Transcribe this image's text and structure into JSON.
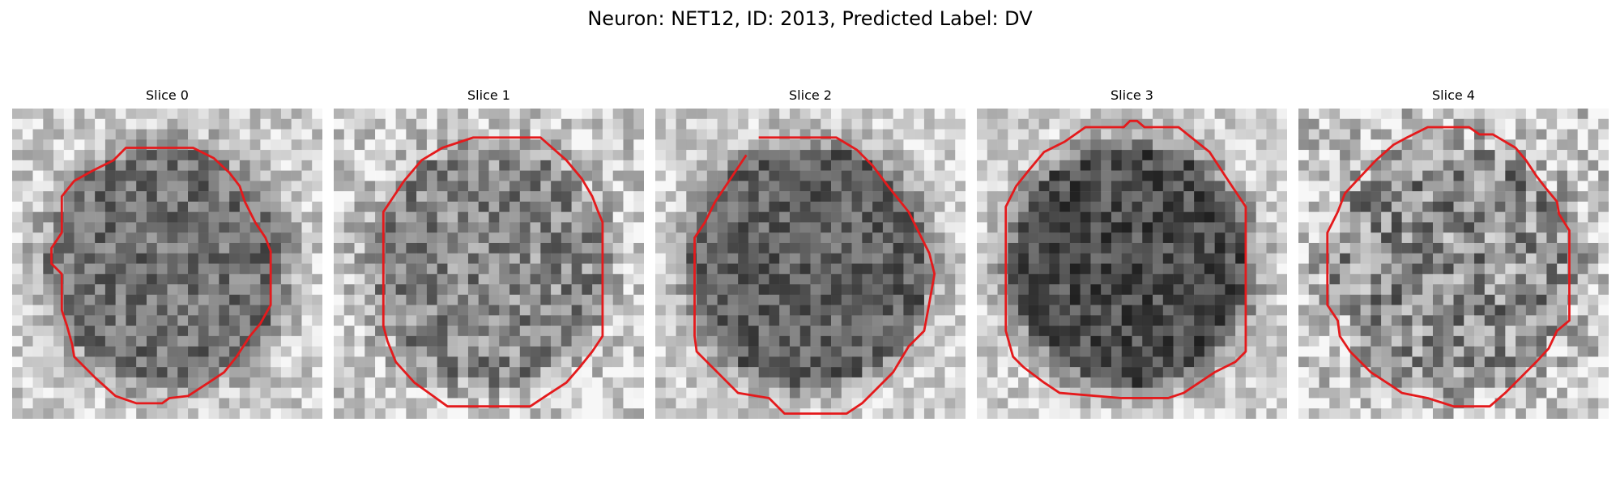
{
  "figure": {
    "title": "Neuron: NET12, ID: 2013, Predicted Label: DV"
  },
  "contour_color": "#e41a1c",
  "panels": [
    {
      "title": "Slice 0",
      "brightness": 0.44,
      "blob": "dark",
      "noise": 0.2,
      "seed": 11
    },
    {
      "title": "Slice 1",
      "brightness": 0.53,
      "blob": "medium",
      "noise": 0.24,
      "seed": 23
    },
    {
      "title": "Slice 2",
      "brightness": 0.38,
      "blob": "dark",
      "noise": 0.18,
      "seed": 37
    },
    {
      "title": "Slice 3",
      "brightness": 0.3,
      "blob": "dark",
      "noise": 0.18,
      "seed": 53
    },
    {
      "title": "Slice 4",
      "brightness": 0.55,
      "blob": "medium",
      "noise": 0.3,
      "seed": 71
    }
  ]
}
